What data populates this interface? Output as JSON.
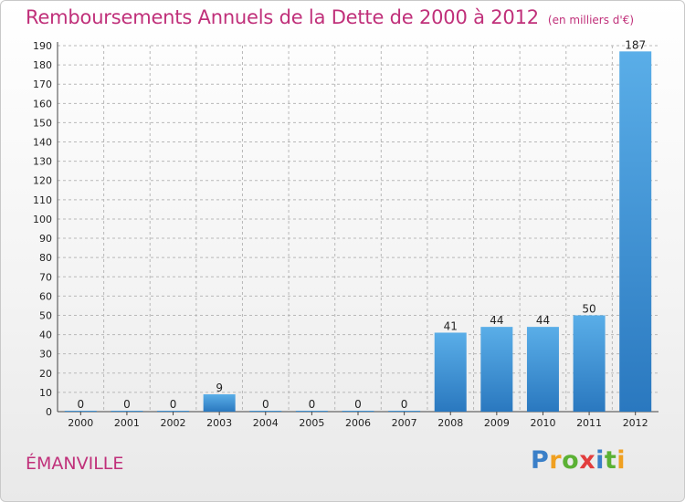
{
  "header": {
    "title": "Remboursements Annuels de la Dette de 2000 à 2012",
    "subtitle": "(en milliers d'€)"
  },
  "footer": {
    "commune": "ÉMANVILLE",
    "logo": "Proxiti"
  },
  "colors": {
    "title": "#c0307a",
    "bar_top": "#5aaee8",
    "bar_bottom": "#2a78bf",
    "grid": "#b8b8b8",
    "axis_text": "#222222"
  },
  "chart_data": {
    "type": "bar",
    "title": "Remboursements Annuels de la Dette de 2000 à 2012",
    "subtitle": "(en milliers d'€)",
    "xlabel": "",
    "ylabel": "",
    "categories": [
      "2000",
      "2001",
      "2002",
      "2003",
      "2004",
      "2005",
      "2006",
      "2007",
      "2008",
      "2009",
      "2010",
      "2011",
      "2012"
    ],
    "values": [
      0,
      0,
      0,
      9,
      0,
      0,
      0,
      0,
      41,
      44,
      44,
      50,
      187
    ],
    "ylim": [
      0,
      190
    ],
    "yticks": [
      0,
      10,
      20,
      30,
      40,
      50,
      60,
      70,
      80,
      90,
      100,
      110,
      120,
      130,
      140,
      150,
      160,
      170,
      180,
      190
    ],
    "grid": true,
    "legend": "none"
  }
}
